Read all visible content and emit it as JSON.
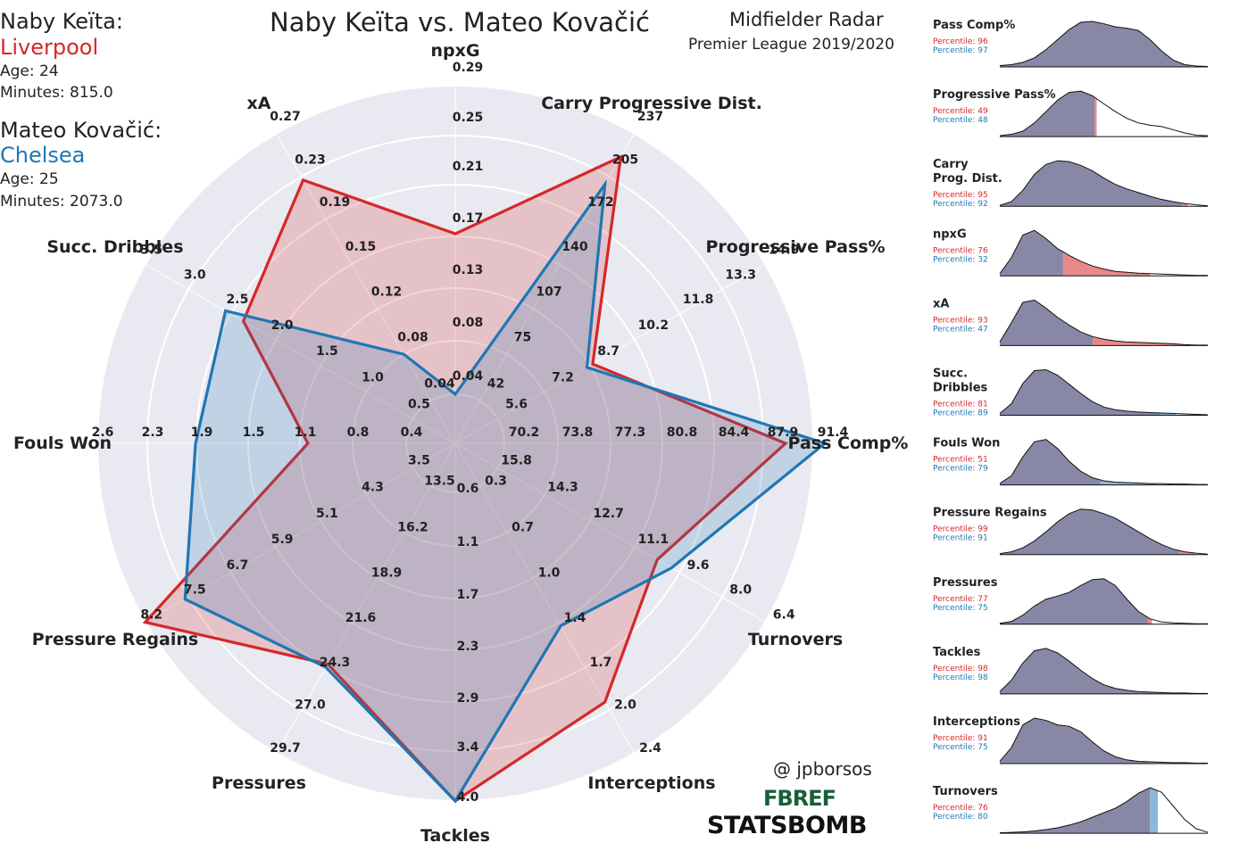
{
  "title": "Naby Keïta vs. Mateo Kovačić",
  "radar_type": "Midfielder Radar",
  "league": "Premier League 2019/2020",
  "credit": "@ jpborsos",
  "logos": {
    "fbref": "FBREF",
    "statsbomb": "STATSBOMB"
  },
  "players": [
    {
      "name": "Naby Keïta:",
      "team": "Liverpool",
      "age": "Age: 24",
      "minutes": "Minutes: 815.0",
      "color": "#d62728"
    },
    {
      "name": "Mateo Kovačić:",
      "team": "Chelsea",
      "age": "Age: 25",
      "minutes": "Minutes: 2073.0",
      "color": "#1f77b4"
    }
  ],
  "chart_data": [
    {
      "type": "radar",
      "title": "Naby Keïta vs. Mateo Kovačić",
      "axes": [
        {
          "label": "npxG",
          "ticks": [
            "0.04",
            "0.08",
            "0.13",
            "0.17",
            "0.21",
            "0.25",
            "0.29"
          ]
        },
        {
          "label": "Carry Progressive Dist.",
          "ticks": [
            "42",
            "75",
            "107",
            "140",
            "172",
            "205",
            "237"
          ]
        },
        {
          "label": "Progressive Pass%",
          "ticks": [
            "5.6",
            "7.2",
            "8.7",
            "10.2",
            "11.8",
            "13.3",
            "14.9"
          ]
        },
        {
          "label": "Pass Comp%",
          "ticks": [
            "70.2",
            "73.8",
            "77.3",
            "80.8",
            "84.4",
            "87.9",
            "91.4"
          ]
        },
        {
          "label": "Turnovers",
          "ticks": [
            "15.8",
            "14.3",
            "12.7",
            "11.1",
            "9.6",
            "8.0",
            "6.4"
          ]
        },
        {
          "label": "Interceptions",
          "ticks": [
            "0.3",
            "0.7",
            "1.0",
            "1.4",
            "1.7",
            "2.0",
            "2.4"
          ]
        },
        {
          "label": "Tackles",
          "ticks": [
            "0.6",
            "1.1",
            "1.7",
            "2.3",
            "2.9",
            "3.4",
            "4.0"
          ]
        },
        {
          "label": "Pressures",
          "ticks": [
            "13.5",
            "16.2",
            "18.9",
            "21.6",
            "24.3",
            "27.0",
            "29.7"
          ]
        },
        {
          "label": "Pressure Regains",
          "ticks": [
            "3.5",
            "4.3",
            "5.1",
            "5.9",
            "6.7",
            "7.5",
            "8.2"
          ]
        },
        {
          "label": "Fouls Won",
          "ticks": [
            "0.4",
            "0.8",
            "1.1",
            "1.5",
            "1.9",
            "2.3",
            "2.6"
          ]
        },
        {
          "label": "Succ. Dribbles",
          "ticks": [
            "0.5",
            "1.0",
            "1.5",
            "2.0",
            "2.5",
            "3.0",
            "3.5"
          ]
        },
        {
          "label": "xA",
          "ticks": [
            "0.04",
            "0.08",
            "0.12",
            "0.15",
            "0.19",
            "0.23",
            "0.27"
          ]
        }
      ],
      "series": [
        {
          "name": "Naby Keïta",
          "color": "#d62728",
          "values": [
            0.17,
            220,
            8.9,
            89.5,
            10.2,
            2.0,
            4.0,
            24.3,
            8.2,
            1.1,
            2.4,
            0.23
          ]
        },
        {
          "name": "Mateo Kovačić",
          "color": "#1f77b4",
          "values": [
            0.04,
            200,
            8.7,
            92.2,
            9.7,
            1.4,
            4.0,
            24.5,
            7.5,
            1.9,
            2.6,
            0.08
          ]
        }
      ]
    },
    {
      "type": "area",
      "xlabel": "",
      "ylabel": "",
      "panels": [
        {
          "label": [
            "Pass Comp%"
          ],
          "p1": "Percentile: 96",
          "p2": "Percentile: 97",
          "pct1": 96,
          "pct2": 97,
          "curve": [
            0.03,
            0.05,
            0.1,
            0.2,
            0.38,
            0.6,
            0.82,
            0.98,
            1.0,
            0.95,
            0.88,
            0.85,
            0.8,
            0.6,
            0.35,
            0.15,
            0.05,
            0.02,
            0.01
          ]
        },
        {
          "label": [
            "Progressive Pass%"
          ],
          "p1": "Percentile: 49",
          "p2": "Percentile: 48",
          "pct1": 49,
          "pct2": 48,
          "curve": [
            0.02,
            0.05,
            0.12,
            0.3,
            0.55,
            0.8,
            0.97,
            1.0,
            0.9,
            0.72,
            0.55,
            0.4,
            0.3,
            0.25,
            0.22,
            0.15,
            0.08,
            0.03,
            0.02
          ]
        },
        {
          "label": [
            "Carry",
            "Prog. Dist."
          ],
          "p1": "Percentile: 95",
          "p2": "Percentile: 92",
          "pct1": 95,
          "pct2": 92,
          "curve": [
            0.02,
            0.1,
            0.35,
            0.7,
            0.92,
            1.0,
            0.98,
            0.9,
            0.78,
            0.62,
            0.48,
            0.38,
            0.3,
            0.22,
            0.15,
            0.1,
            0.06,
            0.03,
            0.01
          ]
        },
        {
          "label": [
            "npxG"
          ],
          "p1": "Percentile: 76",
          "p2": "Percentile: 32",
          "pct1": 76,
          "pct2": 32,
          "curve": [
            0.05,
            0.4,
            0.9,
            1.0,
            0.82,
            0.6,
            0.45,
            0.32,
            0.22,
            0.15,
            0.1,
            0.08,
            0.06,
            0.05,
            0.04,
            0.03,
            0.02,
            0.01,
            0.01
          ]
        },
        {
          "label": [
            "xA"
          ],
          "p1": "Percentile: 93",
          "p2": "Percentile: 47",
          "pct1": 93,
          "pct2": 47,
          "curve": [
            0.08,
            0.5,
            0.95,
            1.0,
            0.82,
            0.62,
            0.45,
            0.3,
            0.2,
            0.14,
            0.1,
            0.08,
            0.07,
            0.06,
            0.05,
            0.04,
            0.02,
            0.01,
            0.01
          ]
        },
        {
          "label": [
            "Succ.",
            "Dribbles"
          ],
          "p1": "Percentile: 81",
          "p2": "Percentile: 89",
          "pct1": 81,
          "pct2": 89,
          "curve": [
            0.04,
            0.25,
            0.7,
            0.98,
            1.0,
            0.88,
            0.68,
            0.48,
            0.3,
            0.18,
            0.12,
            0.09,
            0.07,
            0.06,
            0.05,
            0.04,
            0.03,
            0.02,
            0.01
          ]
        },
        {
          "label": [
            "Fouls Won"
          ],
          "p1": "Percentile: 51",
          "p2": "Percentile: 79",
          "pct1": 51,
          "pct2": 79,
          "curve": [
            0.03,
            0.2,
            0.62,
            0.95,
            1.0,
            0.8,
            0.52,
            0.3,
            0.16,
            0.09,
            0.06,
            0.05,
            0.04,
            0.03,
            0.03,
            0.02,
            0.02,
            0.01,
            0.01
          ]
        },
        {
          "label": [
            "Pressure Regains"
          ],
          "p1": "Percentile: 99",
          "p2": "Percentile: 91",
          "pct1": 99,
          "pct2": 91,
          "curve": [
            0.02,
            0.06,
            0.15,
            0.3,
            0.5,
            0.72,
            0.9,
            1.0,
            0.98,
            0.9,
            0.8,
            0.65,
            0.5,
            0.35,
            0.22,
            0.12,
            0.06,
            0.03,
            0.01
          ]
        },
        {
          "label": [
            "Pressures"
          ],
          "p1": "Percentile: 77",
          "p2": "Percentile: 75",
          "pct1": 77,
          "pct2": 75,
          "curve": [
            0.02,
            0.06,
            0.2,
            0.4,
            0.55,
            0.62,
            0.7,
            0.85,
            0.98,
            1.0,
            0.85,
            0.55,
            0.28,
            0.12,
            0.05,
            0.03,
            0.02,
            0.01,
            0.01
          ]
        },
        {
          "label": [
            "Tackles"
          ],
          "p1": "Percentile: 98",
          "p2": "Percentile: 98",
          "pct1": 98,
          "pct2": 98,
          "curve": [
            0.05,
            0.3,
            0.68,
            0.95,
            1.0,
            0.9,
            0.72,
            0.52,
            0.34,
            0.2,
            0.12,
            0.08,
            0.05,
            0.04,
            0.03,
            0.02,
            0.02,
            0.01,
            0.01
          ]
        },
        {
          "label": [
            "Interceptions"
          ],
          "p1": "Percentile: 91",
          "p2": "Percentile: 75",
          "pct1": 91,
          "pct2": 75,
          "curve": [
            0.05,
            0.35,
            0.85,
            1.0,
            0.95,
            0.85,
            0.82,
            0.7,
            0.48,
            0.28,
            0.15,
            0.08,
            0.05,
            0.04,
            0.03,
            0.02,
            0.02,
            0.01,
            0.01
          ]
        },
        {
          "label": [
            "Turnovers"
          ],
          "p1": "Percentile: 76",
          "p2": "Percentile: 80",
          "pct1": 76,
          "pct2": 80,
          "curve": [
            0.01,
            0.02,
            0.03,
            0.05,
            0.08,
            0.12,
            0.18,
            0.25,
            0.35,
            0.45,
            0.55,
            0.7,
            0.88,
            1.0,
            0.9,
            0.6,
            0.3,
            0.1,
            0.02
          ]
        }
      ]
    }
  ]
}
